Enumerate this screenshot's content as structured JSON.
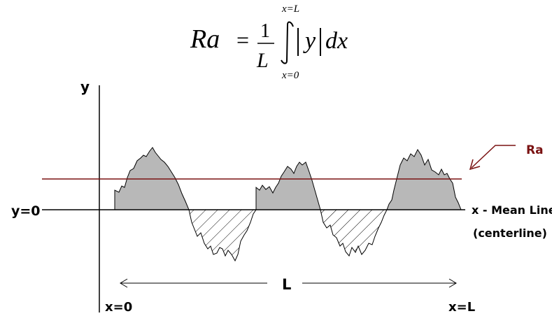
{
  "formula": {
    "lhs": "Ra",
    "equals": "=",
    "numerator": "1",
    "denominator": "L",
    "upper_limit": "x=L",
    "lower_limit": "x=0",
    "integrand": "y",
    "differential": "dx"
  },
  "labels": {
    "y_axis": "y",
    "y_zero": "y=0",
    "x_axis_line1": "x - Mean Line",
    "x_axis_line2": "(centerline)",
    "ra": "Ra",
    "length": "L",
    "x_start": "x=0",
    "x_end": "x=L"
  },
  "colors": {
    "ra_line": "#7a1212",
    "fill_above": "#b8b8b8",
    "axis": "#000000"
  }
}
